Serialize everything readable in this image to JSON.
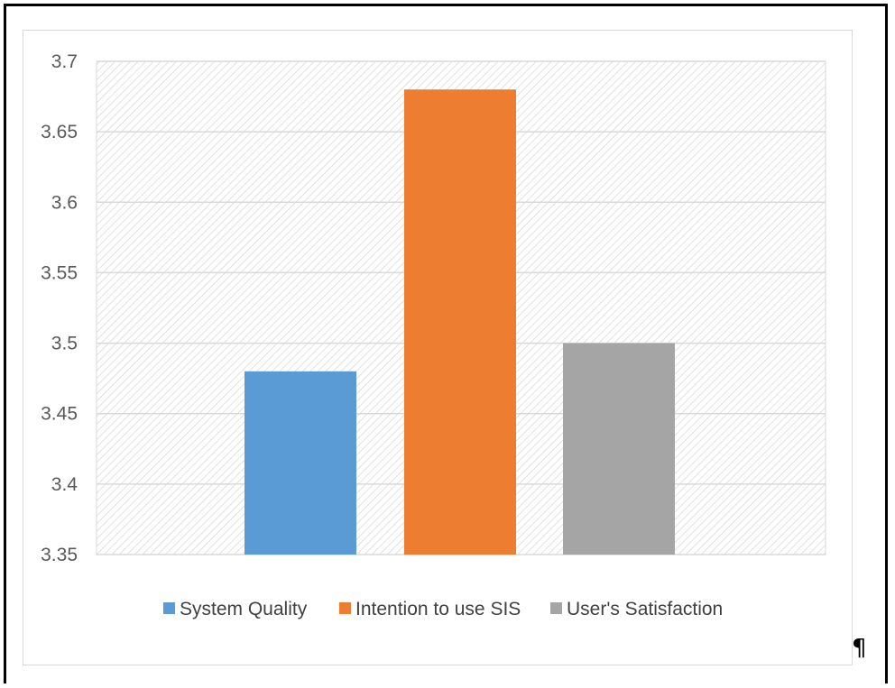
{
  "chart_data": {
    "type": "bar",
    "categories": [
      "System Quality",
      "Intention to use SIS",
      "User's Satisfaction"
    ],
    "values": [
      3.48,
      3.68,
      3.5
    ],
    "colors": [
      "#5b9bd5",
      "#ed7d31",
      "#a5a5a5"
    ],
    "ylim": [
      3.35,
      3.7
    ],
    "yticks": [
      "3.35",
      "3.4",
      "3.45",
      "3.5",
      "3.55",
      "3.6",
      "3.65",
      "3.7"
    ],
    "title": "",
    "xlabel": "",
    "ylabel": "",
    "grid": true,
    "legend_position": "bottom"
  },
  "legend": [
    "System Quality",
    "Intention to use SIS",
    "User's Satisfaction"
  ],
  "paragraph_mark": "¶"
}
